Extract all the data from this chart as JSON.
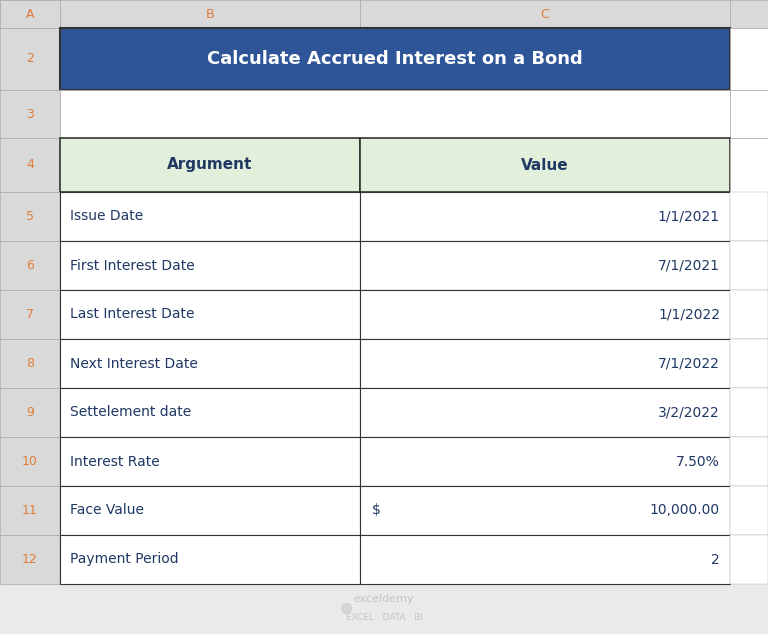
{
  "title": "Calculate Accrued Interest on a Bond",
  "title_bg": "#2E5597",
  "title_fg": "#FFFFFF",
  "header_bg": "#E2EFDA",
  "header_fg": "#1F3864",
  "row_fg": "#1F3864",
  "col_headers": [
    "Argument",
    "Value"
  ],
  "rows": [
    [
      "Issue Date",
      "1/1/2021"
    ],
    [
      "First Interest Date",
      "7/1/2021"
    ],
    [
      "Last Interest Date",
      "1/1/2022"
    ],
    [
      "Next Interest Date",
      "7/1/2022"
    ],
    [
      "Settelement date",
      "3/2/2022"
    ],
    [
      "Interest Rate",
      "7.50%"
    ],
    [
      "Face Value",
      ""
    ],
    [
      "Payment Period",
      "2"
    ]
  ],
  "face_value_dollar": "$",
  "face_value_amount": "10,000.00",
  "bg_color": "#EAEAEA",
  "cell_bg": "#FFFFFF",
  "col_header_bg": "#D9D9D9",
  "col_header_fg": "#E07B39",
  "row_num_fg": "#E07B39",
  "grid_border": "#AAAAAA",
  "table_border": "#333333",
  "watermark_text": "exceldemy\nEXCEL · DATA · BI",
  "watermark_color": "#BBBBBB",
  "corner_tri_color": "#AAAAAA"
}
